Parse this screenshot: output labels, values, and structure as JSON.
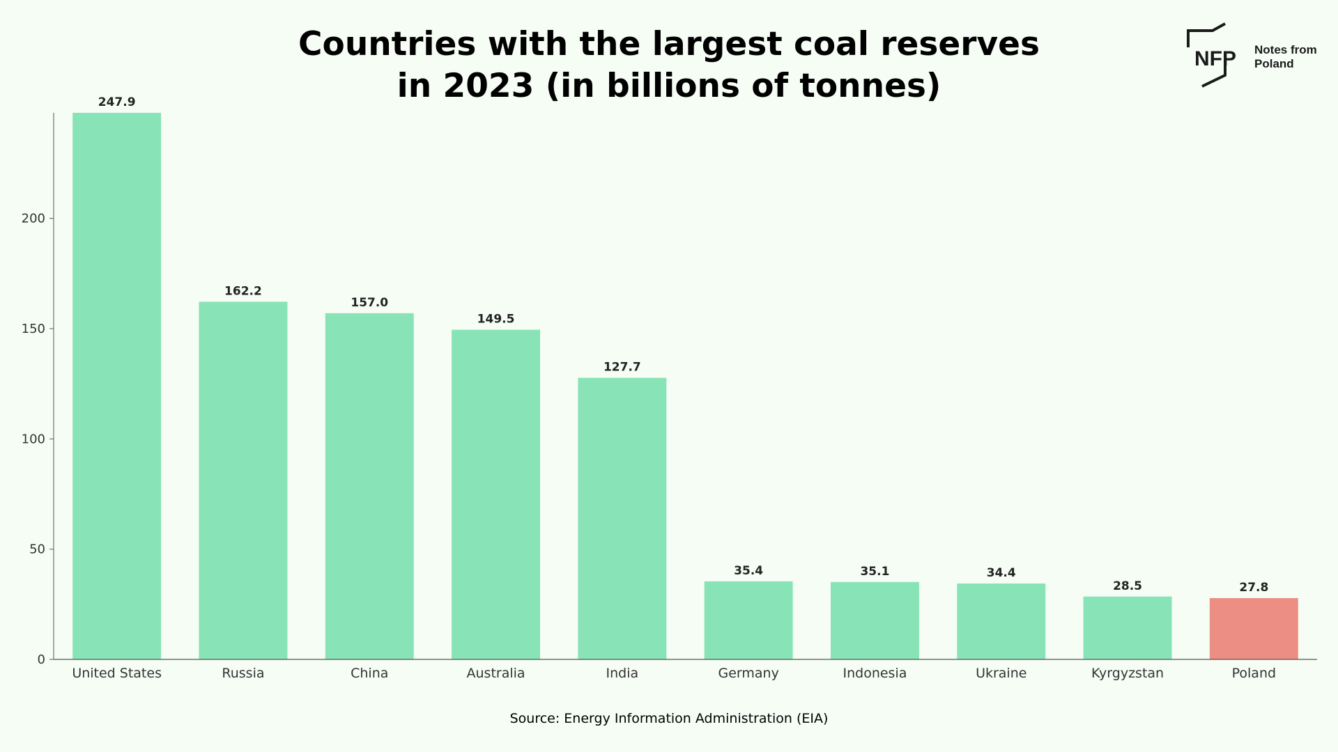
{
  "header": {
    "title_line1": "Countries with the largest coal reserves",
    "title_line2": "in 2023 (in billions of tonnes)"
  },
  "logo": {
    "mark": "NFP",
    "name_line1": "Notes from",
    "name_line2": "Poland"
  },
  "footer": {
    "source": "Source: Energy Information Administration (EIA)"
  },
  "colors": {
    "bar": "#88e3b6",
    "highlight": "#ec8e83",
    "background": "#f5fdf5",
    "text": "#000000"
  },
  "chart_data": {
    "type": "bar",
    "title": "Countries with the largest coal reserves in 2023 (in billions of tonnes)",
    "categories": [
      "United States",
      "Russia",
      "China",
      "Australia",
      "India",
      "Germany",
      "Indonesia",
      "Ukraine",
      "Kyrgyzstan",
      "Poland"
    ],
    "values": [
      247.9,
      162.2,
      157.0,
      149.5,
      127.7,
      35.4,
      35.1,
      34.4,
      28.5,
      27.8
    ],
    "value_labels": [
      "247.9",
      "162.2",
      "157.0",
      "149.5",
      "127.7",
      "35.4",
      "35.1",
      "34.4",
      "28.5",
      "27.8"
    ],
    "highlight": "Poland",
    "yticks": [
      0,
      50,
      100,
      150,
      200
    ],
    "ylim": [
      0,
      247.9
    ],
    "xlabel": "",
    "ylabel": "",
    "grid": false,
    "legend": "none"
  }
}
